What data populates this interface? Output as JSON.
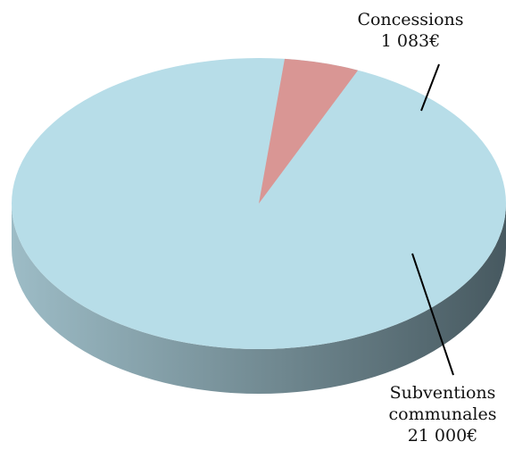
{
  "chart_data": {
    "type": "pie",
    "title": "",
    "slices": [
      {
        "label_lines": [
          "Concessions",
          "1 083€"
        ],
        "value": 1083,
        "color": "#d99694"
      },
      {
        "label_lines": [
          "Subventions",
          "communales",
          "21 000€"
        ],
        "value": 21000,
        "color": "#b7dde8"
      }
    ],
    "style": "3d",
    "side_colors": {
      "light": "#9dbcc6",
      "dark": "#475960"
    },
    "leader_color": "#000000"
  }
}
